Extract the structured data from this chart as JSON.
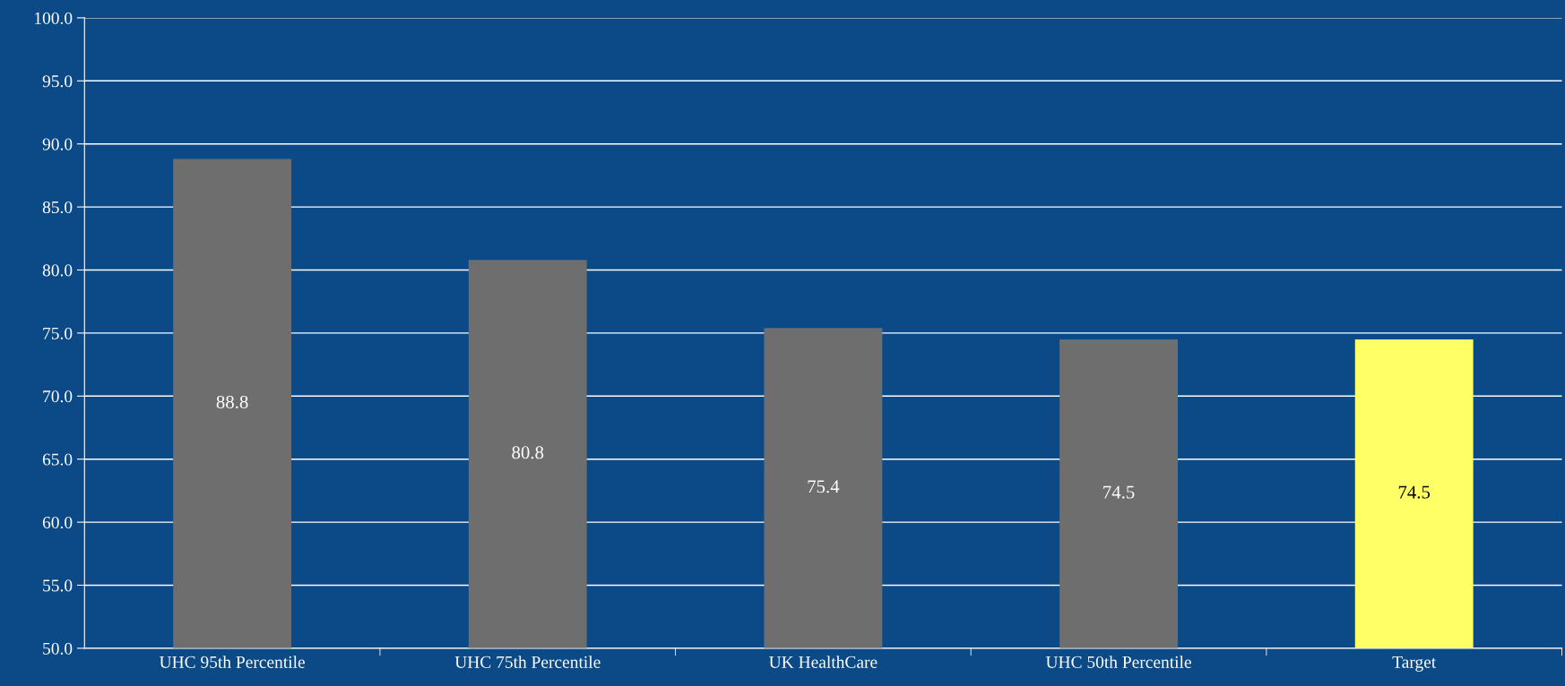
{
  "chart_data": {
    "type": "bar",
    "categories": [
      "UHC 95th Percentile",
      "UHC 75th Percentile",
      "UK HealthCare",
      "UHC 50th Percentile",
      "Target"
    ],
    "values": [
      88.8,
      80.8,
      75.4,
      74.5,
      74.5
    ],
    "colors": [
      "#6e6e6e",
      "#6e6e6e",
      "#6e6e6e",
      "#6e6e6e",
      "#ffff66"
    ],
    "ylim": [
      50,
      100
    ],
    "yticks": [
      {
        "value": 50,
        "label": "50.0"
      },
      {
        "value": 55,
        "label": "55.0"
      },
      {
        "value": 60,
        "label": "60.0"
      },
      {
        "value": 65,
        "label": "65.0"
      },
      {
        "value": 70,
        "label": "70.0"
      },
      {
        "value": 75,
        "label": "75.0"
      },
      {
        "value": 80,
        "label": "80.0"
      },
      {
        "value": 85,
        "label": "85.0"
      },
      {
        "value": 90,
        "label": "90.0"
      },
      {
        "value": 95,
        "label": "95.0"
      },
      {
        "value": 100,
        "label": "100.0"
      }
    ],
    "grid": "y",
    "data_labels": true
  }
}
